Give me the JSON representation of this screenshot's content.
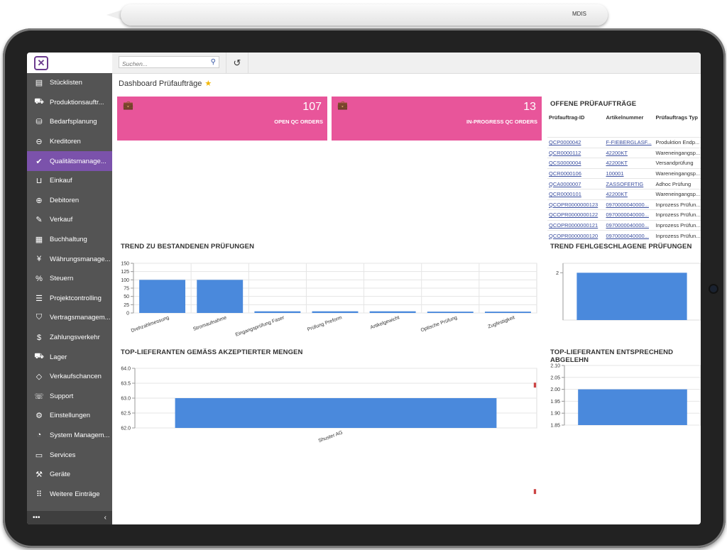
{
  "pencil": {
    "label": "MDIS"
  },
  "topbar": {
    "search_placeholder": "Suchen..."
  },
  "sidebar": {
    "items": [
      {
        "label": "Stücklisten",
        "icon": "clipboard-icon",
        "glyph": "▤"
      },
      {
        "label": "Produktionsauftr...",
        "icon": "truck-icon",
        "glyph": "⛟"
      },
      {
        "label": "Bedarfsplanung",
        "icon": "cart-icon",
        "glyph": "⛁"
      },
      {
        "label": "Kreditoren",
        "icon": "minus-circle-icon",
        "glyph": "⊖"
      },
      {
        "label": "Qualitätsmanage...",
        "icon": "check-circle-icon",
        "glyph": "✔",
        "active": true
      },
      {
        "label": "Einkauf",
        "icon": "basket-icon",
        "glyph": "⊔"
      },
      {
        "label": "Debitoren",
        "icon": "plus-circle-icon",
        "glyph": "⊕"
      },
      {
        "label": "Verkauf",
        "icon": "edit-icon",
        "glyph": "✎"
      },
      {
        "label": "Buchhaltung",
        "icon": "calculator-icon",
        "glyph": "▦"
      },
      {
        "label": "Währungsmanage...",
        "icon": "currency-icon",
        "glyph": "¥"
      },
      {
        "label": "Steuern",
        "icon": "percent-icon",
        "glyph": "%"
      },
      {
        "label": "Projektcontrolling",
        "icon": "list-icon",
        "glyph": "☰"
      },
      {
        "label": "Vertragsmanagem...",
        "icon": "handshake-icon",
        "glyph": "⛉"
      },
      {
        "label": "Zahlungsverkehr",
        "icon": "dollar-icon",
        "glyph": "$"
      },
      {
        "label": "Lager",
        "icon": "truck-icon",
        "glyph": "⛟"
      },
      {
        "label": "Verkaufschancen",
        "icon": "tag-icon",
        "glyph": "◇"
      },
      {
        "label": "Support",
        "icon": "headset-icon",
        "glyph": "☏"
      },
      {
        "label": "Einstellungen",
        "icon": "gear-icon",
        "glyph": "⚙"
      },
      {
        "label": "System Managem...",
        "icon": "pie-chart-icon",
        "glyph": "◔"
      },
      {
        "label": "Services",
        "icon": "briefcase-icon",
        "glyph": "▭"
      },
      {
        "label": "Geräte",
        "icon": "wrench-icon",
        "glyph": "⚒"
      },
      {
        "label": "Weitere Einträge",
        "icon": "grid-icon",
        "glyph": "⠿"
      }
    ],
    "footer_more": "•••",
    "footer_collapse": "‹"
  },
  "page": {
    "title": "Dashboard Prüfaufträge"
  },
  "tiles": [
    {
      "value": "107",
      "label": "OPEN QC ORDERS"
    },
    {
      "value": "13",
      "label": "IN-PROGRESS QC ORDERS"
    }
  ],
  "orders": {
    "title": "OFFENE PRÜFAUFTRÄGE",
    "columns": [
      "Prüfauftrag-ID",
      "Artikelnummer",
      "Prüfauftrags Typ"
    ],
    "rows": [
      [
        "QCP0000042",
        "F-FIEBERGLASF...",
        "Produktion Endp..."
      ],
      [
        "QCR0000112",
        "42200KT",
        "Wareneingangsp..."
      ],
      [
        "QCS0000004",
        "42200KT",
        "Versandprüfung"
      ],
      [
        "QCR0000106",
        "100001",
        "Wareneingangsp..."
      ],
      [
        "QCA0000007",
        "ZASSOFERTIG",
        "Adhoc Prüfung"
      ],
      [
        "QCR0000101",
        "42200KT",
        "Wareneingangsp..."
      ],
      [
        "QCOPR0000000123",
        "0970000040000...",
        "Inprozess Prüfun..."
      ],
      [
        "QCOPR0000000122",
        "0970000040000...",
        "Inprozess Prüfun..."
      ],
      [
        "QCOPR0000000121",
        "0970000040000...",
        "Inprozess Prüfun..."
      ],
      [
        "QCOPR0000000120",
        "0970000040000...",
        "Inprozess Prüfun..."
      ]
    ]
  },
  "chart_titles": {
    "passed": "TREND ZU BESTANDENEN PRÜFUNGEN",
    "failed": "TREND FEHLGESCHLAGENE PRÜFUNGEN",
    "top_accepted": "TOP-LIEFERANTEN GEMÄSS AKZEPTIERTER MENGEN",
    "top_rejected": "TOP-LIEFERANTEN ENTSPRECHEND ABGELEHN"
  },
  "colors": {
    "accent": "#7b52ab",
    "tile": "#e8559a",
    "bar": "#4a89dc"
  },
  "chart_data": [
    {
      "type": "bar",
      "categories": [
        "Drehzahlmessung",
        "Stromaufnahme",
        "Eingangsprüfung Faser",
        "Prüfung Preform",
        "Artikelgewicht",
        "Optische Prüfung",
        "Zugfestigkeit"
      ],
      "values": [
        100,
        100,
        5,
        5,
        5,
        4,
        4
      ],
      "ylim": [
        0,
        150
      ],
      "yticks": [
        0,
        25,
        50,
        75,
        100,
        125,
        150
      ]
    },
    {
      "type": "bar",
      "categories": [
        ""
      ],
      "values": [
        2
      ],
      "ylim": [
        0,
        2.4
      ],
      "yticks": [
        2
      ]
    },
    {
      "type": "bar",
      "categories": [
        "Shuster AG"
      ],
      "values": [
        63
      ],
      "ylim": [
        62,
        64
      ],
      "yticks": [
        "62.0",
        "62.5",
        "63.0",
        "63.5",
        "64.0"
      ]
    },
    {
      "type": "bar",
      "categories": [
        ""
      ],
      "values": [
        2
      ],
      "ylim": [
        1.85,
        2.1
      ],
      "yticks": [
        "1.85",
        "1.90",
        "1.95",
        "2.00",
        "2.05",
        "2.10"
      ]
    }
  ]
}
